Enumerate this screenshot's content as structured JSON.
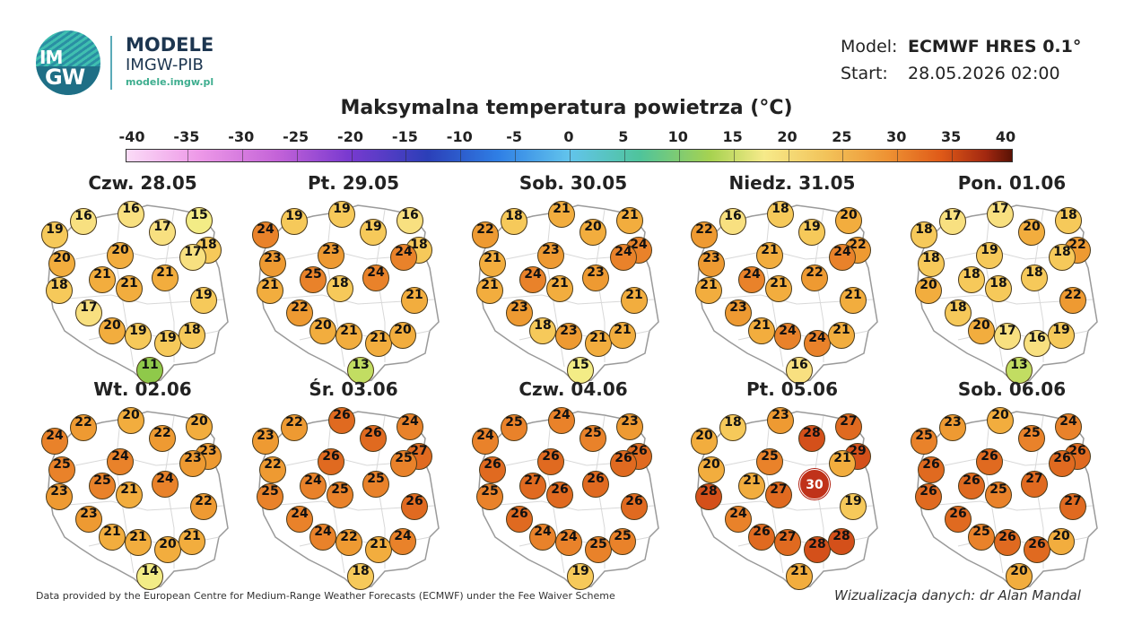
{
  "brand": {
    "logo_line1": "IM",
    "logo_line2": "GW",
    "name": "MODELE",
    "org": "IMGW-PIB",
    "url": "modele.imgw.pl"
  },
  "meta": {
    "model_label": "Model:",
    "model_value": "ECMWF HRES 0.1°",
    "start_label": "Start:",
    "start_value": "28.05.2026 02:00"
  },
  "title": "Maksymalna temperatura powietrza (°C)",
  "colorbar": {
    "ticks": [
      "-40",
      "-35",
      "-30",
      "-25",
      "-20",
      "-15",
      "-10",
      "-5",
      "0",
      "5",
      "10",
      "15",
      "20",
      "25",
      "30",
      "35",
      "40"
    ],
    "min": -40,
    "max": 40
  },
  "panels": [
    {
      "day": "Czw. 28.05",
      "values": [
        19,
        16,
        16,
        17,
        15,
        18,
        20,
        20,
        21,
        19,
        21,
        18,
        21,
        17,
        17,
        20,
        19,
        19,
        18,
        11
      ]
    },
    {
      "day": "Pt. 29.05",
      "values": [
        24,
        19,
        19,
        19,
        16,
        18,
        23,
        23,
        24,
        21,
        25,
        21,
        18,
        24,
        22,
        20,
        21,
        21,
        20,
        13
      ]
    },
    {
      "day": "Sob. 30.05",
      "values": [
        22,
        18,
        21,
        20,
        21,
        24,
        21,
        23,
        23,
        21,
        24,
        21,
        21,
        24,
        23,
        18,
        23,
        21,
        21,
        15
      ]
    },
    {
      "day": "Niedz. 31.05",
      "values": [
        22,
        16,
        18,
        19,
        20,
        22,
        23,
        21,
        22,
        21,
        24,
        21,
        21,
        24,
        23,
        21,
        24,
        24,
        21,
        16
      ]
    },
    {
      "day": "Pon. 01.06",
      "values": [
        18,
        17,
        17,
        20,
        18,
        22,
        18,
        19,
        18,
        22,
        18,
        20,
        18,
        18,
        18,
        20,
        17,
        16,
        19,
        13
      ]
    },
    {
      "day": "Wt. 02.06",
      "values": [
        24,
        22,
        20,
        22,
        20,
        23,
        25,
        24,
        24,
        22,
        25,
        23,
        21,
        23,
        23,
        21,
        21,
        20,
        21,
        14
      ]
    },
    {
      "day": "Śr. 03.06",
      "values": [
        23,
        22,
        26,
        26,
        24,
        27,
        22,
        26,
        25,
        26,
        24,
        25,
        25,
        25,
        24,
        24,
        22,
        21,
        24,
        18
      ]
    },
    {
      "day": "Czw. 04.06",
      "values": [
        24,
        25,
        24,
        25,
        23,
        26,
        26,
        26,
        26,
        26,
        27,
        25,
        26,
        26,
        26,
        24,
        24,
        25,
        25,
        19
      ]
    },
    {
      "day": "Pt. 05.06",
      "values": [
        20,
        18,
        23,
        28,
        27,
        29,
        20,
        25,
        30,
        19,
        21,
        28,
        27,
        21,
        24,
        26,
        27,
        28,
        28,
        21
      ]
    },
    {
      "day": "Sob. 06.06",
      "values": [
        25,
        23,
        20,
        25,
        24,
        26,
        26,
        26,
        27,
        27,
        26,
        26,
        25,
        26,
        26,
        25,
        26,
        26,
        20,
        20
      ]
    }
  ],
  "footer": {
    "left": "Data provided by the European Centre for Medium-Range Weather Forecasts (ECMWF) under the Fee Waiver Scheme",
    "right": "Wizualizacja danych: dr Alan Mandal"
  }
}
